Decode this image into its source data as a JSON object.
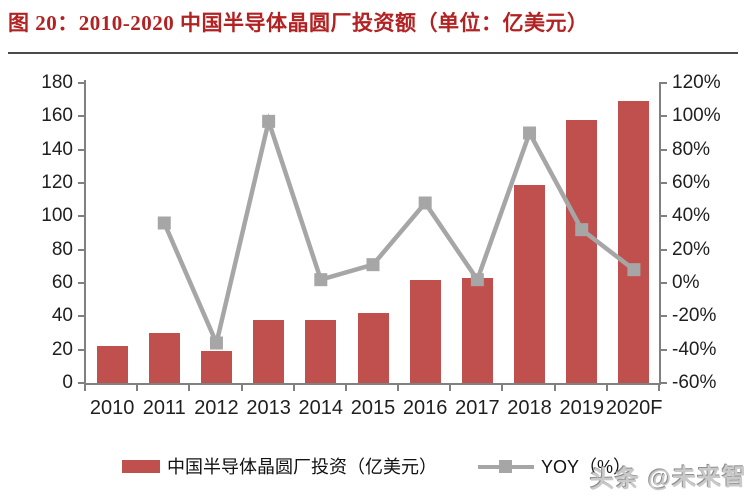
{
  "title": "图 20：2010-2020 中国半导体晶圆厂投资额（单位：亿美元）",
  "watermark": "头条 @未来智库",
  "colors": {
    "title": "#b22222",
    "bar": "#c0504d",
    "line": "#a6a6a6",
    "marker": "#a6a6a6",
    "axis": "#808080",
    "label": "#1f1f1f"
  },
  "legend": {
    "items": [
      {
        "label": "中国半导体晶圆厂投资（亿美元）",
        "marker": "bar"
      },
      {
        "label": "YOY（%）",
        "marker": "line"
      }
    ]
  },
  "chart_data": {
    "type": "bar",
    "title": "图 20：2010-2020 中国半导体晶圆厂投资额（单位：亿美元）",
    "categories": [
      "2010",
      "2011",
      "2012",
      "2013",
      "2014",
      "2015",
      "2016",
      "2017",
      "2018",
      "2019",
      "2020F"
    ],
    "series": [
      {
        "name": "中国半导体晶圆厂投资（亿美元）",
        "type": "bar",
        "axis": "left",
        "values": [
          22,
          30,
          19,
          38,
          38,
          42,
          62,
          63,
          119,
          158,
          169
        ]
      },
      {
        "name": "YOY（%）",
        "type": "line",
        "axis": "right",
        "unit": "%",
        "values": [
          null,
          36,
          -36,
          97,
          2,
          11,
          48,
          2,
          90,
          32,
          8
        ]
      }
    ],
    "left_axis": {
      "min": 0,
      "max": 180,
      "step": 20,
      "ticks": [
        "0",
        "20",
        "40",
        "60",
        "80",
        "100",
        "120",
        "140",
        "160",
        "180"
      ]
    },
    "right_axis": {
      "min": -60,
      "max": 120,
      "step": 20,
      "ticks": [
        "-60%",
        "-40%",
        "-20%",
        "0%",
        "20%",
        "40%",
        "60%",
        "80%",
        "100%",
        "120%"
      ]
    },
    "grid": false,
    "legend_position": "bottom"
  }
}
